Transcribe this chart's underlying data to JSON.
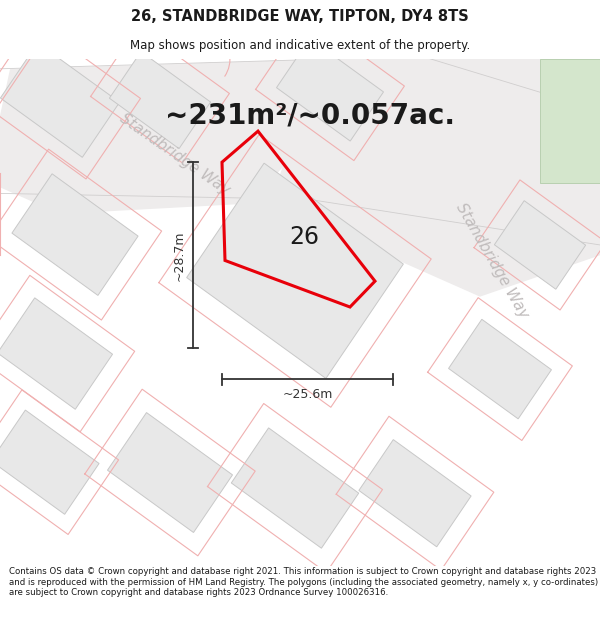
{
  "title": "26, STANDBRIDGE WAY, TIPTON, DY4 8TS",
  "subtitle": "Map shows position and indicative extent of the property.",
  "area_text": "~231m²/~0.057ac.",
  "label_26": "26",
  "dim_vertical": "~28.7m",
  "dim_horizontal": "~25.6m",
  "footer": "Contains OS data © Crown copyright and database right 2021. This information is subject to Crown copyright and database rights 2023 and is reproduced with the permission of HM Land Registry. The polygons (including the associated geometry, namely x, y co-ordinates) are subject to Crown copyright and database rights 2023 Ordnance Survey 100026316.",
  "bg_color": "#f7f6f6",
  "road_fill": "#ebebeb",
  "building_fill": "#e8e8e8",
  "building_edge": "#c8c8c8",
  "pink_color": "#f0b0b0",
  "red_color": "#e8000a",
  "green_fill": "#d4e6cc",
  "green_edge": "#b8d0b0",
  "street_color": "#c0bcbc",
  "dim_color": "#333333",
  "text_color": "#1a1a1a",
  "title_fontsize": 10.5,
  "subtitle_fontsize": 8.5,
  "area_fontsize": 20,
  "label_fontsize": 17,
  "dim_fontsize": 9,
  "street_fontsize": 11,
  "footer_fontsize": 6.2
}
